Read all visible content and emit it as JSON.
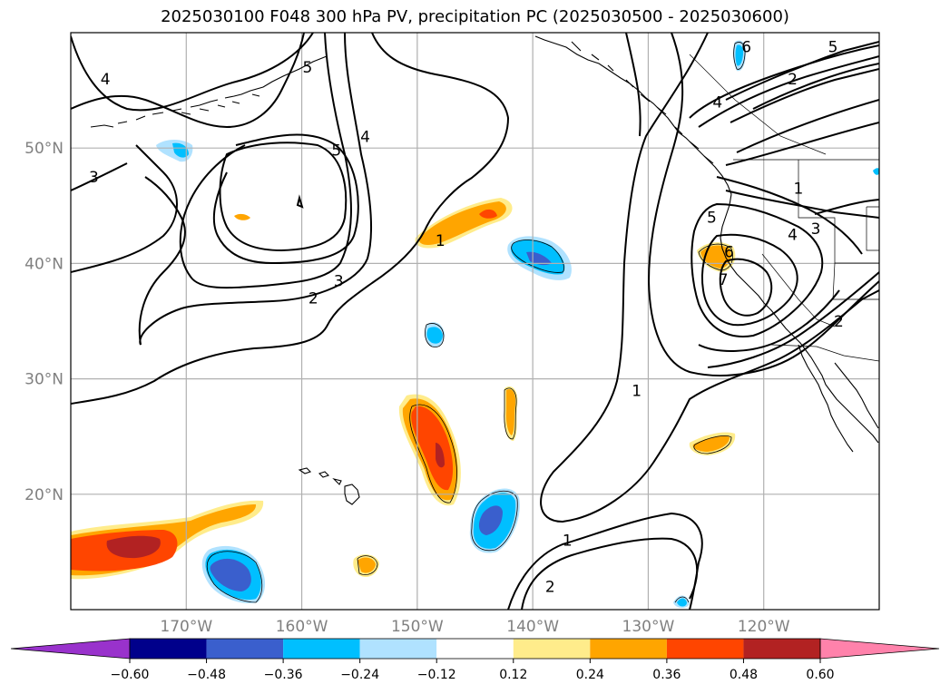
{
  "chart_data": {
    "type": "contour-map",
    "title": "2025030100 F048 300 hPa PV, precipitation PC (2025030500 - 2025030600)",
    "lon_range": [
      180,
      110
    ],
    "lat_range": [
      10,
      60
    ],
    "grid": true,
    "lat_ticks": [
      {
        "value": 20,
        "label": "20°N"
      },
      {
        "value": 30,
        "label": "30°N"
      },
      {
        "value": 40,
        "label": "40°N"
      },
      {
        "value": 50,
        "label": "50°N"
      }
    ],
    "lon_ticks": [
      {
        "value": 170,
        "label": "170°W"
      },
      {
        "value": 160,
        "label": "160°W"
      },
      {
        "value": 150,
        "label": "150°W"
      },
      {
        "value": 140,
        "label": "140°W"
      },
      {
        "value": 130,
        "label": "130°W"
      },
      {
        "value": 120,
        "label": "120°W"
      }
    ],
    "pv_contour_levels": [
      1,
      2,
      3,
      4,
      5,
      6,
      7
    ],
    "pv_contour_labels": [
      {
        "text": "1",
        "lon": 131,
        "lat": 29
      },
      {
        "text": "1",
        "lon": 137,
        "lat": 16
      },
      {
        "text": "1",
        "lon": 148,
        "lat": 42
      },
      {
        "text": "1",
        "lon": 117,
        "lat": 46.5
      },
      {
        "text": "2",
        "lon": 159,
        "lat": 37
      },
      {
        "text": "2",
        "lon": 138.5,
        "lat": 12
      },
      {
        "text": "2",
        "lon": 117.5,
        "lat": 56
      },
      {
        "text": "2",
        "lon": 113.5,
        "lat": 35
      },
      {
        "text": "3",
        "lon": 156.8,
        "lat": 38.5
      },
      {
        "text": "3",
        "lon": 178,
        "lat": 47.5
      },
      {
        "text": "3",
        "lon": 115.5,
        "lat": 43
      },
      {
        "text": "4",
        "lon": 177,
        "lat": 56
      },
      {
        "text": "4",
        "lon": 154.5,
        "lat": 51
      },
      {
        "text": "4",
        "lon": 124,
        "lat": 54
      },
      {
        "text": "4",
        "lon": 117.5,
        "lat": 42.5
      },
      {
        "text": "5",
        "lon": 159.5,
        "lat": 57
      },
      {
        "text": "5",
        "lon": 157,
        "lat": 49.8
      },
      {
        "text": "5",
        "lon": 124.5,
        "lat": 44
      },
      {
        "text": "5",
        "lon": 114,
        "lat": 58.8
      },
      {
        "text": "6",
        "lon": 121.5,
        "lat": 58.8
      },
      {
        "text": "6",
        "lon": 123,
        "lat": 41
      },
      {
        "text": "7",
        "lon": 123.5,
        "lat": 38.6
      }
    ],
    "colorbar": {
      "levels": [
        -0.6,
        -0.48,
        -0.36,
        -0.24,
        -0.12,
        0.12,
        0.24,
        0.36,
        0.48,
        0.6
      ],
      "tick_labels": [
        "−0.60",
        "−0.48",
        "−0.36",
        "−0.24",
        "−0.12",
        "0.12",
        "0.24",
        "0.36",
        "0.48",
        "0.60"
      ],
      "colors": [
        "#9932cc",
        "#00008b",
        "#3a5fcd",
        "#00bfff",
        "#b0e2ff",
        "#ffffff",
        "#ffec8b",
        "#ffa500",
        "#ff4500",
        "#b22222",
        "#ff82ab"
      ],
      "extend": "both"
    },
    "precip_anomalies": [
      {
        "lon": 171.5,
        "lat": 15.5,
        "value": 0.48
      },
      {
        "lon": 163.5,
        "lat": 18.5,
        "value": 0.24
      },
      {
        "lon": 149.8,
        "lat": 26,
        "value": 0.48
      },
      {
        "lon": 145.5,
        "lat": 43.3,
        "value": 0.36
      },
      {
        "lon": 141.5,
        "lat": 28,
        "value": 0.12
      },
      {
        "lon": 154.5,
        "lat": 13.8,
        "value": 0.24
      },
      {
        "lon": 123.7,
        "lat": 23,
        "value": 0.24
      },
      {
        "lon": 123.8,
        "lat": 39.5,
        "value": 0.24
      },
      {
        "lon": 138.8,
        "lat": 40.5,
        "value": -0.48
      },
      {
        "lon": 145.5,
        "lat": 17.5,
        "value": -0.48
      },
      {
        "lon": 166,
        "lat": 13.5,
        "value": -0.48
      },
      {
        "lon": 169.5,
        "lat": 49.5,
        "value": -0.24
      },
      {
        "lon": 149.3,
        "lat": 33.8,
        "value": -0.24
      },
      {
        "lon": 122.2,
        "lat": 58.5,
        "value": -0.24
      },
      {
        "lon": 127.3,
        "lat": 10.5,
        "value": -0.24
      }
    ]
  }
}
